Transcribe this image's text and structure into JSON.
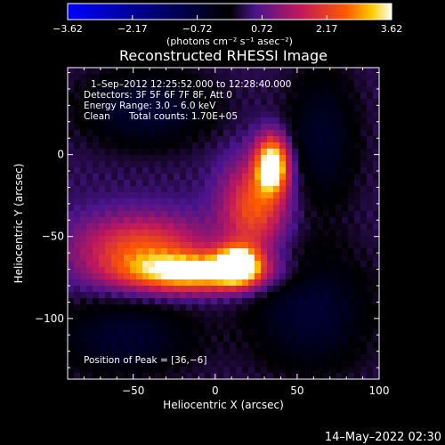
{
  "chart_data": {
    "type": "heatmap",
    "title": "Reconstructed RHESSI Image",
    "xlabel": "Heliocentric X (arcsec)",
    "ylabel": "Heliocentric Y (arcsec)",
    "xlim": [
      -90,
      100
    ],
    "ylim": [
      -137,
      53
    ],
    "x_ticks": [
      -50,
      0,
      50,
      100
    ],
    "y_ticks": [
      0,
      -50,
      -100
    ],
    "x_tick_labels": [
      "−50",
      "0",
      "50",
      "100"
    ],
    "y_tick_labels": [
      "0",
      "−50",
      "−100"
    ],
    "colorbar": {
      "min": -3.62,
      "max": 3.62,
      "tick_labels": [
        "−3.62",
        "−2.17",
        "−0.72",
        "0.72",
        "2.17",
        "3.62"
      ],
      "unit_label": "(photons cm⁻² s⁻¹ asec⁻²)"
    },
    "info_lines": [
      "1–Sep–2012 12:25:52.000 to 12:28:40.000",
      "Detectors: 3F 5F 6F 7F 8F, Att 0",
      "Energy Range: 3.0 – 6.0 keV",
      "Clean",
      "Total counts: 1.70E+05"
    ],
    "peak_label": "Position of Peak = [36,−6]",
    "peak": {
      "x": 36,
      "y": -6
    },
    "sources": [
      {
        "x": 35,
        "y": -6,
        "sx": 7,
        "sy": 12,
        "amp": 3.62
      },
      {
        "x": -12,
        "y": -72,
        "sx": 30,
        "sy": 8,
        "amp": 3.1
      },
      {
        "x": 14,
        "y": -67,
        "sx": 9,
        "sy": 8,
        "amp": 3.3
      },
      {
        "x": -45,
        "y": -57,
        "sx": 28,
        "sy": 14,
        "amp": 2.0
      },
      {
        "x": 24,
        "y": -32,
        "sx": 14,
        "sy": 20,
        "amp": 2.1
      },
      {
        "x": -42,
        "y": 28,
        "sx": 28,
        "sy": 16,
        "amp": -1.1
      },
      {
        "x": 65,
        "y": 10,
        "sx": 16,
        "sy": 30,
        "amp": -0.9
      },
      {
        "x": -55,
        "y": -112,
        "sx": 30,
        "sy": 16,
        "amp": -1.0
      },
      {
        "x": 58,
        "y": -95,
        "sx": 26,
        "sy": 26,
        "amp": -1.05
      }
    ],
    "background_level": 0.35
  },
  "footer": {
    "timestamp": "14–May–2022 02:30"
  }
}
